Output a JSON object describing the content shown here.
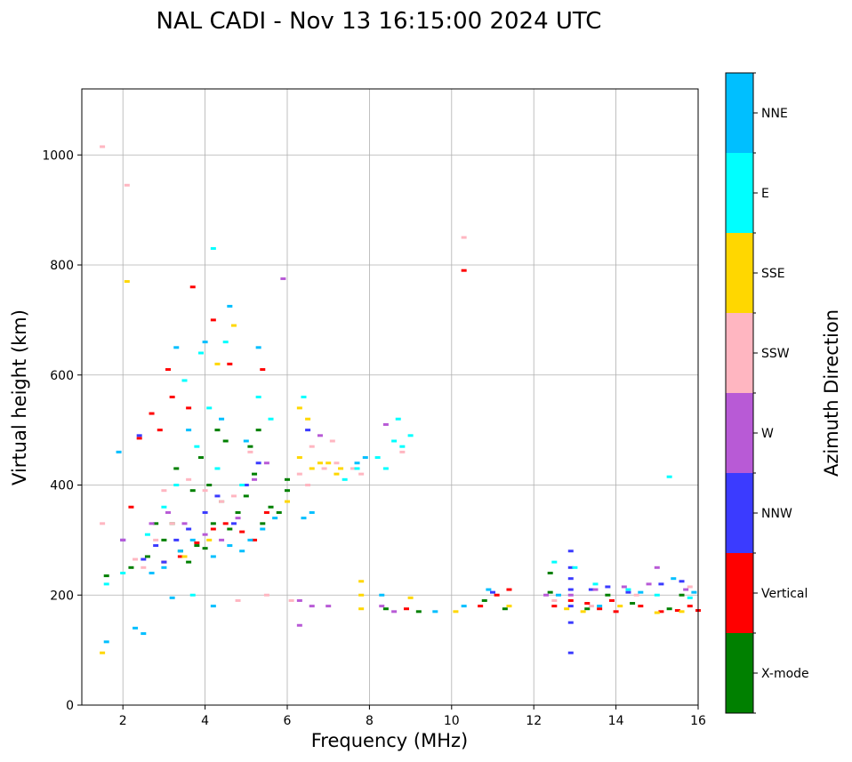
{
  "chart_data": {
    "type": "scatter",
    "title": "NAL CADI - Nov 13 16:15:00 2024 UTC",
    "xlabel": "Frequency (MHz)",
    "ylabel": "Virtual height (km)",
    "xlim": [
      1,
      16
    ],
    "ylim": [
      0,
      1120
    ],
    "xticks": [
      "2",
      "4",
      "6",
      "8",
      "10",
      "12",
      "14",
      "16"
    ],
    "yticks": [
      "0",
      "200",
      "400",
      "600",
      "800",
      "1000"
    ],
    "grid": true,
    "colorbar": {
      "label": "Azimuth Direction",
      "categories": [
        {
          "name": "X-mode",
          "color": "#008000"
        },
        {
          "name": "Vertical",
          "color": "#ff0000"
        },
        {
          "name": "NNW",
          "color": "#3b3bff"
        },
        {
          "name": "W",
          "color": "#b85ad6"
        },
        {
          "name": "SSW",
          "color": "#ffb6c1"
        },
        {
          "name": "SSE",
          "color": "#ffd700"
        },
        {
          "name": "E",
          "color": "#00ffff"
        },
        {
          "name": "NNE",
          "color": "#00bfff"
        }
      ]
    },
    "series": [
      {
        "name": "X-mode",
        "points": [
          [
            1.6,
            235
          ],
          [
            2.2,
            250
          ],
          [
            2.6,
            270
          ],
          [
            3.0,
            300
          ],
          [
            3.2,
            330
          ],
          [
            3.4,
            280
          ],
          [
            3.6,
            260
          ],
          [
            3.8,
            290
          ],
          [
            4.0,
            285
          ],
          [
            4.2,
            330
          ],
          [
            4.4,
            370
          ],
          [
            4.6,
            320
          ],
          [
            4.8,
            350
          ],
          [
            5.0,
            380
          ],
          [
            5.2,
            420
          ],
          [
            5.4,
            330
          ],
          [
            5.6,
            360
          ],
          [
            5.8,
            350
          ],
          [
            6.0,
            390
          ],
          [
            3.3,
            430
          ],
          [
            3.7,
            390
          ],
          [
            4.1,
            400
          ],
          [
            4.5,
            480
          ],
          [
            5.1,
            470
          ],
          [
            5.3,
            500
          ],
          [
            6.0,
            410
          ],
          [
            9.2,
            170
          ],
          [
            10.8,
            190
          ],
          [
            11.3,
            175
          ],
          [
            12.4,
            240
          ],
          [
            12.4,
            205
          ],
          [
            13.3,
            175
          ],
          [
            13.8,
            200
          ],
          [
            14.4,
            185
          ],
          [
            15.3,
            175
          ],
          [
            15.6,
            200
          ],
          [
            3.9,
            450
          ],
          [
            4.3,
            500
          ],
          [
            2.8,
            330
          ],
          [
            8.4,
            175
          ]
        ]
      },
      {
        "name": "Vertical",
        "points": [
          [
            2.4,
            485
          ],
          [
            2.7,
            530
          ],
          [
            2.9,
            500
          ],
          [
            3.1,
            610
          ],
          [
            3.2,
            560
          ],
          [
            3.6,
            540
          ],
          [
            3.0,
            260
          ],
          [
            3.4,
            270
          ],
          [
            3.8,
            295
          ],
          [
            4.2,
            320
          ],
          [
            4.5,
            330
          ],
          [
            4.9,
            315
          ],
          [
            5.2,
            300
          ],
          [
            5.5,
            350
          ],
          [
            2.2,
            360
          ],
          [
            10.3,
            790
          ],
          [
            3.7,
            760
          ],
          [
            4.2,
            700
          ],
          [
            4.6,
            620
          ],
          [
            5.4,
            610
          ],
          [
            8.9,
            175
          ],
          [
            10.7,
            180
          ],
          [
            11.1,
            200
          ],
          [
            11.4,
            210
          ],
          [
            12.9,
            190
          ],
          [
            13.3,
            185
          ],
          [
            13.6,
            175
          ],
          [
            14.0,
            170
          ],
          [
            14.6,
            180
          ],
          [
            15.1,
            170
          ],
          [
            15.5,
            172
          ],
          [
            15.8,
            180
          ],
          [
            16.0,
            172
          ],
          [
            12.5,
            180
          ],
          [
            13.9,
            190
          ]
        ]
      },
      {
        "name": "NNW",
        "points": [
          [
            2.0,
            300
          ],
          [
            2.5,
            265
          ],
          [
            2.8,
            290
          ],
          [
            3.0,
            260
          ],
          [
            3.3,
            300
          ],
          [
            3.6,
            320
          ],
          [
            4.0,
            350
          ],
          [
            4.3,
            380
          ],
          [
            4.7,
            330
          ],
          [
            5.0,
            400
          ],
          [
            5.3,
            440
          ],
          [
            12.9,
            280
          ],
          [
            12.9,
            250
          ],
          [
            12.9,
            230
          ],
          [
            12.9,
            210
          ],
          [
            12.9,
            180
          ],
          [
            12.9,
            150
          ],
          [
            12.9,
            95
          ],
          [
            13.4,
            210
          ],
          [
            13.8,
            215
          ],
          [
            14.3,
            205
          ],
          [
            15.1,
            220
          ],
          [
            15.6,
            225
          ],
          [
            6.5,
            500
          ],
          [
            11.0,
            205
          ],
          [
            2.4,
            490
          ]
        ]
      },
      {
        "name": "W",
        "points": [
          [
            2.0,
            300
          ],
          [
            2.7,
            330
          ],
          [
            3.1,
            350
          ],
          [
            3.5,
            330
          ],
          [
            4.0,
            310
          ],
          [
            4.4,
            300
          ],
          [
            4.8,
            340
          ],
          [
            5.5,
            440
          ],
          [
            5.2,
            410
          ],
          [
            6.3,
            190
          ],
          [
            6.6,
            180
          ],
          [
            7.0,
            180
          ],
          [
            8.3,
            180
          ],
          [
            8.6,
            170
          ],
          [
            12.3,
            200
          ],
          [
            12.9,
            200
          ],
          [
            13.5,
            210
          ],
          [
            14.2,
            215
          ],
          [
            14.8,
            220
          ],
          [
            15.0,
            250
          ],
          [
            15.7,
            210
          ],
          [
            6.3,
            145
          ],
          [
            5.9,
            775
          ],
          [
            8.4,
            510
          ],
          [
            6.8,
            490
          ]
        ]
      },
      {
        "name": "SSW",
        "points": [
          [
            1.5,
            330
          ],
          [
            2.3,
            265
          ],
          [
            2.5,
            250
          ],
          [
            2.8,
            300
          ],
          [
            3.2,
            330
          ],
          [
            3.6,
            410
          ],
          [
            4.0,
            390
          ],
          [
            4.7,
            380
          ],
          [
            5.1,
            460
          ],
          [
            6.3,
            420
          ],
          [
            6.5,
            400
          ],
          [
            6.9,
            430
          ],
          [
            7.2,
            440
          ],
          [
            7.6,
            430
          ],
          [
            7.8,
            420
          ],
          [
            6.6,
            470
          ],
          [
            7.1,
            480
          ],
          [
            8.8,
            460
          ],
          [
            2.1,
            945
          ],
          [
            1.5,
            1015
          ],
          [
            10.3,
            850
          ],
          [
            4.4,
            370
          ],
          [
            4.8,
            190
          ],
          [
            5.5,
            200
          ],
          [
            12.5,
            190
          ],
          [
            13.4,
            180
          ],
          [
            14.5,
            200
          ],
          [
            15.8,
            215
          ],
          [
            6.1,
            190
          ],
          [
            3.0,
            390
          ]
        ]
      },
      {
        "name": "SSE",
        "points": [
          [
            1.5,
            95
          ],
          [
            2.1,
            770
          ],
          [
            3.5,
            270
          ],
          [
            4.1,
            300
          ],
          [
            4.7,
            690
          ],
          [
            6.3,
            540
          ],
          [
            6.5,
            520
          ],
          [
            6.3,
            450
          ],
          [
            6.6,
            430
          ],
          [
            7.0,
            440
          ],
          [
            7.2,
            420
          ],
          [
            7.8,
            225
          ],
          [
            7.8,
            200
          ],
          [
            7.8,
            175
          ],
          [
            9.0,
            195
          ],
          [
            10.1,
            170
          ],
          [
            11.4,
            180
          ],
          [
            12.8,
            175
          ],
          [
            13.2,
            170
          ],
          [
            14.1,
            180
          ],
          [
            15.0,
            168
          ],
          [
            15.6,
            170
          ],
          [
            6.0,
            370
          ],
          [
            6.8,
            440
          ],
          [
            7.3,
            430
          ],
          [
            4.3,
            620
          ]
        ]
      },
      {
        "name": "E",
        "points": [
          [
            1.6,
            220
          ],
          [
            2.0,
            240
          ],
          [
            2.6,
            310
          ],
          [
            3.0,
            360
          ],
          [
            3.3,
            400
          ],
          [
            3.8,
            470
          ],
          [
            4.1,
            540
          ],
          [
            4.3,
            430
          ],
          [
            4.9,
            400
          ],
          [
            5.3,
            560
          ],
          [
            5.6,
            520
          ],
          [
            4.2,
            830
          ],
          [
            3.9,
            640
          ],
          [
            3.5,
            590
          ],
          [
            8.2,
            450
          ],
          [
            8.4,
            430
          ],
          [
            8.6,
            480
          ],
          [
            8.8,
            470
          ],
          [
            9.0,
            490
          ],
          [
            8.7,
            520
          ],
          [
            15.3,
            415
          ],
          [
            7.4,
            410
          ],
          [
            7.7,
            430
          ],
          [
            3.7,
            200
          ],
          [
            4.5,
            660
          ],
          [
            6.4,
            560
          ],
          [
            12.5,
            260
          ],
          [
            13.0,
            250
          ],
          [
            14.3,
            210
          ],
          [
            15.0,
            200
          ],
          [
            15.8,
            195
          ],
          [
            13.5,
            220
          ]
        ]
      },
      {
        "name": "NNE",
        "points": [
          [
            1.6,
            115
          ],
          [
            2.3,
            140
          ],
          [
            2.5,
            130
          ],
          [
            2.7,
            240
          ],
          [
            3.0,
            250
          ],
          [
            3.4,
            280
          ],
          [
            3.7,
            300
          ],
          [
            4.2,
            270
          ],
          [
            4.6,
            290
          ],
          [
            4.9,
            280
          ],
          [
            5.1,
            300
          ],
          [
            5.4,
            320
          ],
          [
            5.7,
            340
          ],
          [
            6.4,
            340
          ],
          [
            6.6,
            350
          ],
          [
            7.7,
            440
          ],
          [
            7.9,
            450
          ],
          [
            1.9,
            460
          ],
          [
            4.6,
            725
          ],
          [
            4.0,
            660
          ],
          [
            3.3,
            650
          ],
          [
            5.3,
            650
          ],
          [
            3.2,
            195
          ],
          [
            4.2,
            180
          ],
          [
            8.3,
            200
          ],
          [
            9.6,
            170
          ],
          [
            10.3,
            180
          ],
          [
            10.9,
            210
          ],
          [
            12.6,
            200
          ],
          [
            13.6,
            180
          ],
          [
            14.6,
            205
          ],
          [
            15.4,
            230
          ],
          [
            15.9,
            205
          ],
          [
            3.6,
            500
          ],
          [
            4.4,
            520
          ],
          [
            5.0,
            480
          ]
        ]
      }
    ]
  }
}
